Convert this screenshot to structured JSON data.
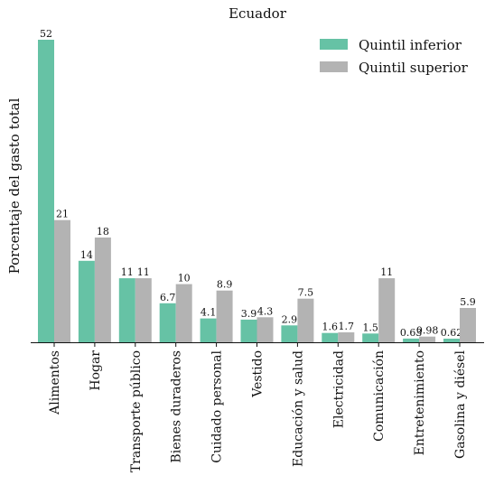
{
  "chart_data": {
    "type": "bar",
    "title": "Ecuador",
    "xlabel": "",
    "ylabel": "Porcentaje del gasto total",
    "categories": [
      "Alimentos",
      "Hogar",
      "Transporte público",
      "Bienes duraderos",
      "Cuidado personal",
      "Vestido",
      "Educación y salud",
      "Electricidad",
      "Comunicación",
      "Entretenimiento",
      "Gasolina y diésel"
    ],
    "series": [
      {
        "name": "Quintil inferior",
        "color": "#66c2a5",
        "values": [
          52,
          14,
          11,
          6.7,
          4.1,
          3.9,
          2.9,
          1.6,
          1.5,
          0.63,
          0.62
        ],
        "labels": [
          "52",
          "14",
          "11",
          "6.7",
          "4.1",
          "3.9",
          "2.9",
          "1.6",
          "1.5",
          "0.63",
          "0.62"
        ]
      },
      {
        "name": "Quintil superior",
        "color": "#b3b3b3",
        "values": [
          21,
          18,
          11,
          10,
          8.9,
          4.3,
          7.5,
          1.7,
          11,
          0.98,
          5.9
        ],
        "labels": [
          "21",
          "18",
          "11",
          "10",
          "8.9",
          "4.3",
          "7.5",
          "1.7",
          "11",
          "0.98",
          "5.9"
        ]
      }
    ],
    "ylim": [
      0,
      52
    ],
    "legend_position": "top-right",
    "grid": false
  }
}
